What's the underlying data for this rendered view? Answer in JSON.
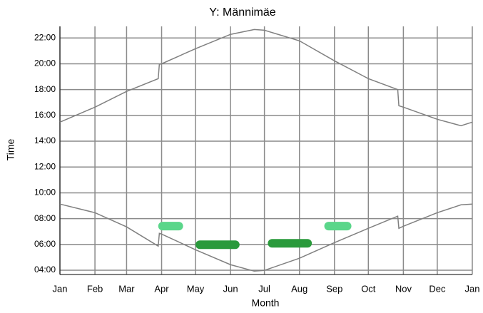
{
  "chart_data": {
    "type": "line",
    "title": "Y: Männimäe",
    "xlabel": "Month",
    "ylabel": "Time",
    "xlim": [
      0,
      365
    ],
    "ylim": [
      3.67,
      22.9
    ],
    "xticks": [
      {
        "value": 0,
        "label": "Jan"
      },
      {
        "value": 31,
        "label": "Feb"
      },
      {
        "value": 59,
        "label": "Mar"
      },
      {
        "value": 90,
        "label": "Apr"
      },
      {
        "value": 120,
        "label": "May"
      },
      {
        "value": 151,
        "label": "Jun"
      },
      {
        "value": 181,
        "label": "Jul"
      },
      {
        "value": 212,
        "label": "Aug"
      },
      {
        "value": 243,
        "label": "Sep"
      },
      {
        "value": 273,
        "label": "Oct"
      },
      {
        "value": 304,
        "label": "Nov"
      },
      {
        "value": 334,
        "label": "Dec"
      },
      {
        "value": 365,
        "label": "Jan"
      }
    ],
    "yticks": [
      {
        "value": 4,
        "label": "04:00"
      },
      {
        "value": 6,
        "label": "06:00"
      },
      {
        "value": 8,
        "label": "08:00"
      },
      {
        "value": 10,
        "label": "10:00"
      },
      {
        "value": 12,
        "label": "12:00"
      },
      {
        "value": 14,
        "label": "14:00"
      },
      {
        "value": 16,
        "label": "16:00"
      },
      {
        "value": 18,
        "label": "18:00"
      },
      {
        "value": 20,
        "label": "20:00"
      },
      {
        "value": 22,
        "label": "22:00"
      }
    ],
    "grid": true,
    "x": [
      0,
      31,
      59,
      87,
      88,
      90,
      120,
      151,
      172,
      181,
      212,
      243,
      273,
      299,
      300,
      304,
      334,
      355,
      365
    ],
    "series": [
      {
        "color": "#808080",
        "values": [
          15.48,
          16.64,
          17.86,
          18.85,
          19.96,
          20.0,
          21.17,
          22.28,
          22.66,
          22.6,
          21.78,
          20.23,
          18.85,
          18.0,
          16.75,
          16.64,
          15.7,
          15.2,
          15.48
        ]
      },
      {
        "color": "#808080",
        "values": [
          9.13,
          8.46,
          7.36,
          5.87,
          6.86,
          6.8,
          5.59,
          4.43,
          3.93,
          3.99,
          4.93,
          6.14,
          7.25,
          8.19,
          7.25,
          7.41,
          8.46,
          9.07,
          9.13
        ]
      }
    ],
    "highlights": [
      {
        "x": [
          87,
          109
        ],
        "y": 7.42,
        "color": "#5ad68a"
      },
      {
        "x": [
          120,
          159
        ],
        "y": 5.98,
        "color": "#2a9a3c"
      },
      {
        "x": [
          184,
          223
        ],
        "y": 6.09,
        "color": "#2a9a3c"
      },
      {
        "x": [
          234,
          258
        ],
        "y": 7.42,
        "color": "#5ad68a"
      }
    ]
  }
}
